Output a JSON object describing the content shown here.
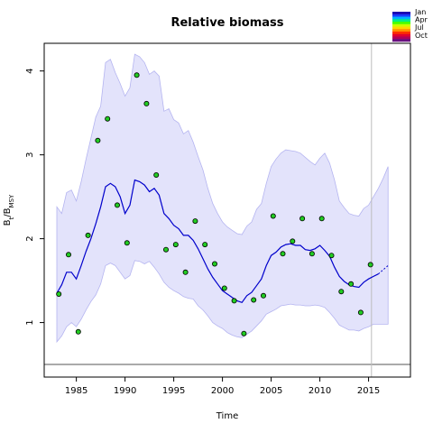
{
  "colors": {
    "band": "#e3e3fb",
    "band_edge": "#b4b4f0",
    "line": "#0000cc",
    "point_fill": "#22cc22",
    "point_stroke": "#000000",
    "vline": "#bdbdbd",
    "hline": "#555555"
  },
  "chart_data": {
    "type": "line",
    "title": "Relative biomass",
    "xlabel": "Time",
    "ylabel": "B",
    "ylabel_sub1": "t",
    "ylabel_sep": "/B",
    "ylabel_sub2": "MSY",
    "xlim": [
      1981.7,
      2019.3
    ],
    "ylim": [
      0.35,
      4.33
    ],
    "x_ticks": [
      1985,
      1990,
      1995,
      2000,
      2005,
      2010,
      2015
    ],
    "y_ticks": [
      1,
      2,
      3,
      4
    ],
    "grid": false,
    "reference_hline": 0.5,
    "reference_vline": 2015.3,
    "legend": {
      "placement": "top-right",
      "labels": [
        "Jan",
        "Apr",
        "Jul",
        "Oct"
      ],
      "colors": [
        "#1a00b0",
        "#1b3bff",
        "#00b0ff",
        "#00ee88",
        "#44ff00",
        "#c8ff00",
        "#ffd800",
        "#ff9000",
        "#ff3000",
        "#e00030",
        "#b0005a",
        "#6a1080"
      ]
    },
    "series": [
      {
        "kind": "line",
        "x": [
          1983,
          1983.5,
          1984,
          1984.5,
          1985,
          1985.5,
          1986,
          1986.5,
          1987,
          1987.5,
          1988,
          1988.5,
          1989,
          1989.5,
          1990,
          1990.5,
          1991,
          1991.5,
          1992,
          1992.5,
          1993,
          1993.5,
          1994,
          1994.5,
          1995,
          1995.5,
          1996,
          1996.5,
          1997,
          1997.5,
          1998,
          1998.5,
          1999,
          1999.5,
          2000,
          2000.5,
          2001,
          2001.5,
          2002,
          2002.5,
          2003,
          2003.5,
          2004,
          2004.5,
          2005,
          2005.5,
          2006,
          2006.5,
          2007,
          2007.5,
          2008,
          2008.5,
          2009,
          2009.5,
          2010,
          2010.5,
          2011,
          2011.5,
          2012,
          2012.5,
          2013,
          2013.5,
          2014,
          2014.5,
          2015,
          2015.5,
          2016
        ],
        "y": [
          1.35,
          1.45,
          1.6,
          1.6,
          1.52,
          1.68,
          1.85,
          2.0,
          2.18,
          2.38,
          2.62,
          2.66,
          2.62,
          2.5,
          2.3,
          2.4,
          2.7,
          2.68,
          2.64,
          2.56,
          2.6,
          2.52,
          2.3,
          2.24,
          2.16,
          2.12,
          2.04,
          2.04,
          1.98,
          1.88,
          1.76,
          1.64,
          1.54,
          1.46,
          1.38,
          1.34,
          1.3,
          1.26,
          1.24,
          1.32,
          1.36,
          1.44,
          1.52,
          1.68,
          1.8,
          1.84,
          1.9,
          1.93,
          1.94,
          1.92,
          1.92,
          1.87,
          1.86,
          1.88,
          1.92,
          1.86,
          1.79,
          1.66,
          1.55,
          1.49,
          1.45,
          1.43,
          1.42,
          1.48,
          1.52,
          1.55,
          1.58
        ]
      },
      {
        "kind": "projection",
        "x": [
          2016,
          2016.5,
          2017
        ],
        "y": [
          1.58,
          1.63,
          1.68
        ]
      },
      {
        "kind": "band_upper",
        "x": [
          1983,
          1983.5,
          1984,
          1984.5,
          1985,
          1985.5,
          1986,
          1986.5,
          1987,
          1987.5,
          1988,
          1988.5,
          1989,
          1989.5,
          1990,
          1990.5,
          1991,
          1991.5,
          1992,
          1992.5,
          1993,
          1993.5,
          1994,
          1994.5,
          1995,
          1995.5,
          1996,
          1996.5,
          1997,
          1997.5,
          1998,
          1998.5,
          1999,
          1999.5,
          2000,
          2000.5,
          2001,
          2001.5,
          2002,
          2002.5,
          2003,
          2003.5,
          2004,
          2004.5,
          2005,
          2005.5,
          2006,
          2006.5,
          2007,
          2007.5,
          2008,
          2008.5,
          2009,
          2009.5,
          2010,
          2010.5,
          2011,
          2011.5,
          2012,
          2012.5,
          2013,
          2013.5,
          2014,
          2014.5,
          2015,
          2015.5,
          2016,
          2016.5,
          2017
        ],
        "y": [
          2.38,
          2.3,
          2.55,
          2.58,
          2.45,
          2.68,
          2.95,
          3.2,
          3.45,
          3.58,
          4.1,
          4.14,
          3.98,
          3.85,
          3.7,
          3.8,
          4.2,
          4.17,
          4.1,
          3.96,
          4.0,
          3.94,
          3.52,
          3.55,
          3.42,
          3.38,
          3.25,
          3.29,
          3.15,
          2.98,
          2.82,
          2.6,
          2.42,
          2.3,
          2.2,
          2.14,
          2.1,
          2.06,
          2.05,
          2.15,
          2.2,
          2.35,
          2.42,
          2.66,
          2.86,
          2.95,
          3.02,
          3.06,
          3.05,
          3.04,
          3.02,
          2.97,
          2.92,
          2.88,
          2.96,
          3.02,
          2.9,
          2.7,
          2.45,
          2.37,
          2.3,
          2.28,
          2.27,
          2.36,
          2.4,
          2.5,
          2.6,
          2.72,
          2.86
        ]
      },
      {
        "kind": "band_lower",
        "x": [
          1983,
          1983.5,
          1984,
          1984.5,
          1985,
          1985.5,
          1986,
          1986.5,
          1987,
          1987.5,
          1988,
          1988.5,
          1989,
          1989.5,
          1990,
          1990.5,
          1991,
          1991.5,
          1992,
          1992.5,
          1993,
          1993.5,
          1994,
          1994.5,
          1995,
          1995.5,
          1996,
          1996.5,
          1997,
          1997.5,
          1998,
          1998.5,
          1999,
          1999.5,
          2000,
          2000.5,
          2001,
          2001.5,
          2002,
          2002.5,
          2003,
          2003.5,
          2004,
          2004.5,
          2005,
          2005.5,
          2006,
          2006.5,
          2007,
          2007.5,
          2008,
          2008.5,
          2009,
          2009.5,
          2010,
          2010.5,
          2011,
          2011.5,
          2012,
          2012.5,
          2013,
          2013.5,
          2014,
          2014.5,
          2015,
          2015.5,
          2016,
          2016.5,
          2017
        ],
        "y": [
          0.77,
          0.84,
          0.95,
          1.0,
          0.95,
          1.04,
          1.15,
          1.25,
          1.33,
          1.46,
          1.68,
          1.71,
          1.68,
          1.6,
          1.52,
          1.56,
          1.74,
          1.73,
          1.7,
          1.73,
          1.66,
          1.58,
          1.48,
          1.42,
          1.38,
          1.35,
          1.31,
          1.29,
          1.28,
          1.2,
          1.15,
          1.08,
          1.0,
          0.96,
          0.93,
          0.88,
          0.85,
          0.83,
          0.82,
          0.86,
          0.9,
          0.96,
          1.02,
          1.1,
          1.13,
          1.16,
          1.2,
          1.21,
          1.22,
          1.21,
          1.21,
          1.2,
          1.2,
          1.21,
          1.2,
          1.18,
          1.12,
          1.05,
          0.97,
          0.94,
          0.91,
          0.91,
          0.9,
          0.93,
          0.95,
          0.98,
          0.98,
          0.98,
          0.98
        ]
      },
      {
        "kind": "observations",
        "x": [
          1983.2,
          1984.2,
          1985.2,
          1986.2,
          1987.2,
          1988.2,
          1989.2,
          1990.2,
          1991.2,
          1992.2,
          1993.2,
          1994.2,
          1995.2,
          1996.2,
          1997.2,
          1998.2,
          1999.2,
          2000.2,
          2001.2,
          2002.2,
          2003.2,
          2004.2,
          2005.2,
          2006.2,
          2007.2,
          2008.2,
          2009.2,
          2010.2,
          2011.2,
          2012.2,
          2013.2,
          2014.2,
          2015.2
        ],
        "y": [
          1.34,
          1.81,
          0.89,
          2.04,
          3.17,
          3.43,
          2.4,
          1.95,
          3.95,
          3.61,
          2.76,
          1.87,
          1.93,
          1.6,
          2.21,
          1.93,
          1.7,
          1.41,
          1.26,
          0.87,
          1.27,
          1.32,
          2.27,
          1.82,
          1.97,
          2.24,
          1.82,
          2.24,
          1.8,
          1.37,
          1.46,
          1.12,
          1.69
        ]
      }
    ]
  }
}
